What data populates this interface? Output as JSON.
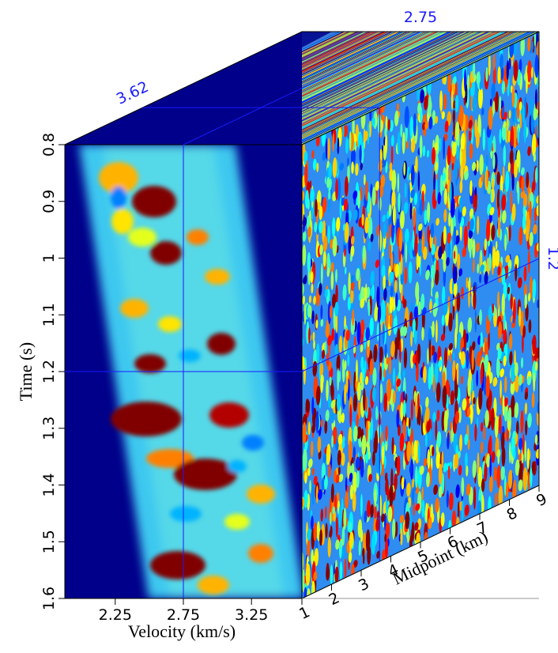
{
  "chart_data": {
    "type": "cube",
    "front": {
      "xlabel": "Velocity (km/s)",
      "ylabel": "Time (s)",
      "xlim": [
        1.88,
        3.62
      ],
      "xticks": [
        2.25,
        2.75,
        3.25
      ],
      "ylim": [
        0.8,
        1.6
      ],
      "yticks": [
        0.8,
        0.9,
        1,
        1.1,
        1.2,
        1.3,
        1.4,
        1.5,
        1.6
      ]
    },
    "depth": {
      "label": "Midpoint (km)",
      "lim": [
        1,
        9
      ],
      "ticks": [
        1,
        2,
        3,
        4,
        5,
        6,
        7,
        8,
        9
      ]
    },
    "slices": {
      "velocity": 2.75,
      "time": 1.2,
      "midpoint": 3.62
    }
  }
}
